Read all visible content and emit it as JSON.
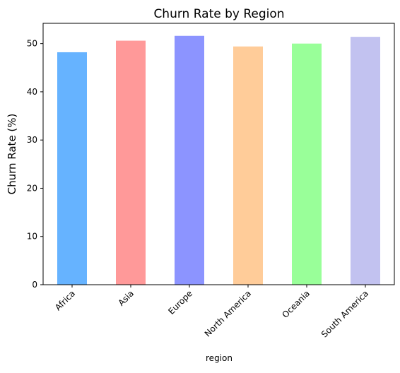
{
  "chart_data": {
    "type": "bar",
    "title": "Churn Rate by Region",
    "xlabel": "region",
    "ylabel": "Churn Rate (%)",
    "categories": [
      "Africa",
      "Asia",
      "Europe",
      "North America",
      "Oceania",
      "South America"
    ],
    "values": [
      48.2,
      50.6,
      51.6,
      49.4,
      50.0,
      51.4
    ],
    "colors": [
      "#66b3ff",
      "#ff9999",
      "#8c94ff",
      "#ffcc99",
      "#99ff99",
      "#c2c2f0"
    ],
    "ylim": [
      0,
      54.2
    ],
    "yticks": [
      0,
      10,
      20,
      30,
      40,
      50
    ],
    "grid": false,
    "legend": "none"
  }
}
